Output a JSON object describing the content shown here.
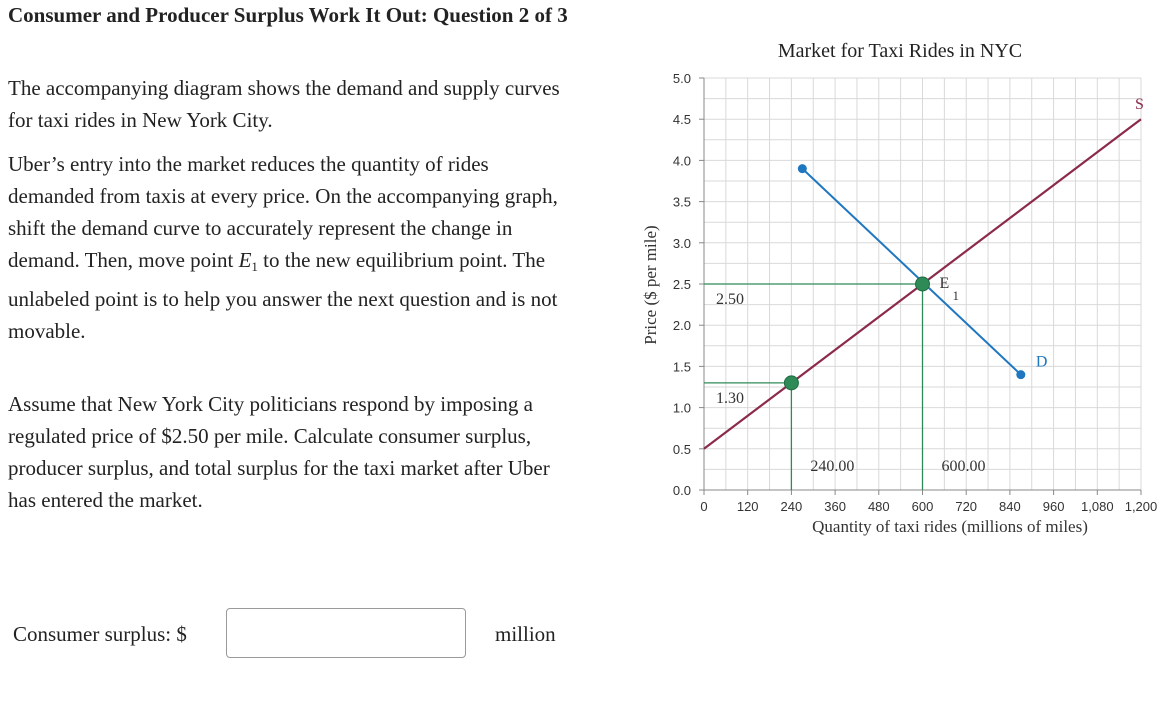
{
  "question": {
    "title": "Consumer and Producer Surplus Work It Out: Question 2 of 3",
    "p1": "The accompanying diagram shows the demand and supply curves for taxi rides in New York City.",
    "p2_a": "Uber’s entry into the market reduces the quantity of rides demanded from taxis at every price. On the accompanying graph, shift the demand curve to accurately represent the change in demand. Then, move point ",
    "p2_point": "E",
    "p2_sub": "1",
    "p2_b": " to the new equilibrium point. The unlabeled point is to help you answer the next question and is not movable.",
    "p3": "Assume that New York City politicians respond by imposing a regulated price of $2.50 per mile. Calculate consumer surplus, producer surplus, and total surplus for the taxi market after Uber has entered the market.",
    "answer_label": "Consumer surplus: $",
    "answer_value": "",
    "answer_unit": "million"
  },
  "colors": {
    "supply": "#8b2a4a",
    "demand": "#1f77c0",
    "guide": "#2e8b57",
    "point_fill": "#2e8b57",
    "grid": "#d9d9d9"
  },
  "chart_data": {
    "type": "line",
    "title": "Market for Taxi Rides in NYC",
    "xlabel": "Quantity of taxi rides (millions of miles)",
    "ylabel": "Price ($ per mile)",
    "xlim": [
      0,
      1200
    ],
    "ylim": [
      0,
      5.0
    ],
    "xticks": [
      0,
      120,
      240,
      360,
      480,
      600,
      720,
      840,
      960,
      1080,
      1200
    ],
    "xtick_labels": [
      "0",
      "120",
      "240",
      "360",
      "480",
      "600",
      "720",
      "840",
      "960",
      "1,080",
      "1,200"
    ],
    "yticks": [
      0,
      0.5,
      1.0,
      1.5,
      2.0,
      2.5,
      3.0,
      3.5,
      4.0,
      4.5,
      5.0
    ],
    "ytick_labels": [
      "0.0",
      "0.5",
      "1.0",
      "1.5",
      "2.0",
      "2.5",
      "3.0",
      "3.5",
      "4.0",
      "4.5",
      "5.0"
    ],
    "grid": true,
    "series": [
      {
        "name": "S",
        "points": [
          [
            0,
            0.5
          ],
          [
            1200,
            4.5
          ]
        ]
      },
      {
        "name": "D",
        "points": [
          [
            270,
            3.9
          ],
          [
            870,
            1.4
          ]
        ]
      }
    ],
    "markers": [
      {
        "label": "E",
        "sub": "1",
        "x": 600,
        "y": 2.5
      },
      {
        "label": "",
        "x": 240,
        "y": 1.3
      }
    ],
    "guides": [
      {
        "x": 600,
        "y": 2.5,
        "price_label": "2.50",
        "qty_label": "600.00"
      },
      {
        "x": 240,
        "y": 1.3,
        "price_label": "1.30",
        "qty_label": "240.00"
      }
    ]
  }
}
